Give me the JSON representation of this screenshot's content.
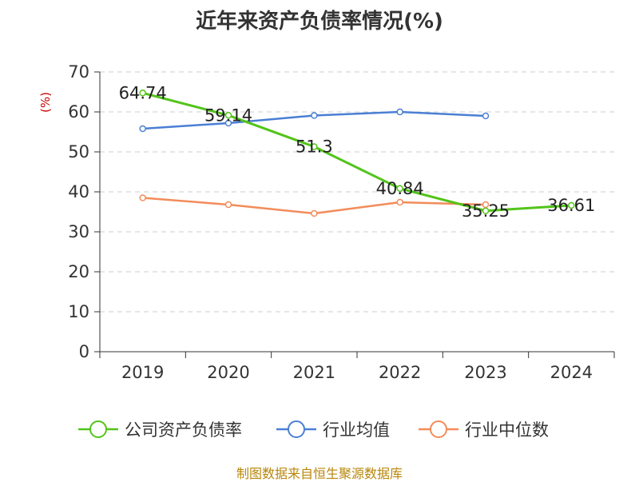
{
  "chart_data": {
    "type": "line",
    "title": "近年来资产负债率情况(%)",
    "ylabel": "(%)",
    "ylim": [
      0,
      70
    ],
    "yticks": [
      "0",
      "10",
      "20",
      "30",
      "40",
      "50",
      "60",
      "70"
    ],
    "categories": [
      "2019",
      "2020",
      "2021",
      "2022",
      "2023",
      "2024"
    ],
    "grid": true,
    "legend_position": "bottom",
    "series": [
      {
        "name": "公司资产负债率",
        "color": "#52c41a",
        "values": [
          64.74,
          59.14,
          51.3,
          40.84,
          35.25,
          36.61
        ],
        "labels": [
          "64.74",
          "59.14",
          "51.3",
          "40.84",
          "35.25",
          "36.61"
        ]
      },
      {
        "name": "行业均值",
        "color": "#4a7fd4",
        "values": [
          55.8,
          57.2,
          59.1,
          60.0,
          59.0,
          null
        ]
      },
      {
        "name": "行业中位数",
        "color": "#f28c5a",
        "values": [
          38.5,
          36.8,
          34.6,
          37.4,
          36.8,
          null
        ]
      }
    ]
  },
  "source": "制图数据来自恒生聚源数据库",
  "colors": {
    "axis": "#333333",
    "grid": "#cccccc",
    "ylabel": "#cc0000",
    "source": "#b8860b"
  }
}
